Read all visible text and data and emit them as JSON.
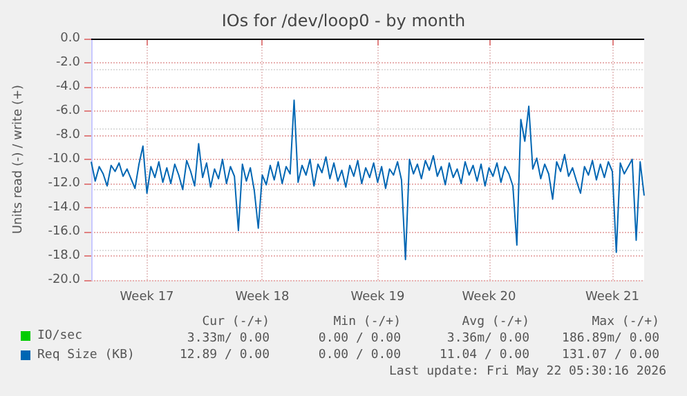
{
  "chart_data": {
    "type": "line",
    "title": "IOs for /dev/loop0 - by month",
    "ylabel": "Units read (-) / write (+)",
    "categories": [
      null,
      null,
      null,
      null,
      null,
      null,
      null,
      null,
      null,
      null,
      null,
      null,
      null,
      null,
      "Week 17",
      null,
      null,
      null,
      null,
      null,
      null,
      null,
      null,
      null,
      null,
      null,
      null,
      null,
      null,
      null,
      null,
      null,
      null,
      null,
      null,
      null,
      null,
      null,
      null,
      null,
      null,
      null,
      null,
      "Week 18",
      null,
      null,
      null,
      null,
      null,
      null,
      null,
      null,
      null,
      null,
      null,
      null,
      null,
      null,
      null,
      null,
      null,
      null,
      null,
      null,
      null,
      null,
      null,
      null,
      null,
      null,
      null,
      null,
      "Week 19",
      null,
      null,
      null,
      null,
      null,
      null,
      null,
      null,
      null,
      null,
      null,
      null,
      null,
      null,
      null,
      null,
      null,
      null,
      null,
      null,
      null,
      null,
      null,
      null,
      null,
      null,
      null,
      "Week 20",
      null,
      null,
      null,
      null,
      null,
      null,
      null,
      null,
      null,
      null,
      null,
      null,
      null,
      null,
      null,
      null,
      null,
      null,
      null,
      null,
      null,
      null,
      null,
      null,
      null,
      null,
      null,
      null,
      null,
      null,
      "Week 21",
      null,
      null,
      null,
      null,
      null,
      null,
      null,
      null
    ],
    "ylim": [
      -20,
      0
    ],
    "yticks": [
      {
        "value": -20,
        "label": "-20.0"
      },
      {
        "value": -18,
        "label": "-18.0"
      },
      {
        "value": -16,
        "label": "-16.0"
      },
      {
        "value": -14,
        "label": "-14.0"
      },
      {
        "value": -12,
        "label": "-12.0"
      },
      {
        "value": -10,
        "label": "-10.0"
      },
      {
        "value": -8,
        "label": "-8.0"
      },
      {
        "value": -6,
        "label": "-6.0"
      },
      {
        "value": -4,
        "label": "-4.0"
      },
      {
        "value": -2,
        "label": "-2.0"
      },
      {
        "value": 0,
        "label": "0.0"
      }
    ],
    "grid": true,
    "legend": "bottom left",
    "marker": "none",
    "line_style": "solid",
    "ref_lines": [
      {
        "axis": "y",
        "value": 0,
        "label": null,
        "color": "#000000"
      }
    ],
    "series": [
      {
        "name": "IO/sec",
        "color": "#00cc00",
        "values": [
          null,
          null,
          null,
          null,
          null,
          null,
          null,
          null,
          null,
          null,
          null,
          null,
          null,
          null,
          null,
          null,
          null,
          null,
          null,
          null,
          null,
          null,
          null,
          null,
          null,
          null,
          null,
          null,
          null,
          null,
          null,
          null,
          null,
          null,
          null,
          null,
          null,
          null,
          null,
          null,
          null,
          null,
          null,
          null,
          null,
          null,
          null,
          null,
          null,
          null,
          null,
          null,
          null,
          null,
          null,
          null,
          null,
          null,
          null,
          null,
          null,
          null,
          null,
          null,
          null,
          null,
          null,
          null,
          null,
          null,
          null,
          null,
          null,
          null,
          null,
          null,
          null,
          null,
          null,
          null,
          null,
          null,
          null,
          null,
          null,
          null,
          null,
          null,
          null,
          null,
          null,
          null,
          null,
          null,
          null,
          null,
          null,
          null,
          null,
          null,
          null,
          null,
          null,
          null,
          null,
          null,
          null,
          null,
          null,
          null,
          null,
          null,
          null,
          null,
          null,
          null,
          null,
          null,
          null,
          null,
          null,
          null,
          null,
          null,
          null,
          null,
          null,
          null,
          null,
          null,
          null,
          null,
          null,
          null,
          null,
          null,
          null,
          null,
          null,
          null
        ]
      },
      {
        "name": "Req Size (KB)",
        "color": "#0066b3",
        "values": [
          -10.2,
          -11.8,
          -10.6,
          -11.2,
          -12.2,
          -10.5,
          -11.0,
          -10.3,
          -11.4,
          -10.8,
          -11.6,
          -12.4,
          -10.4,
          -8.9,
          -12.8,
          -10.6,
          -11.5,
          -10.2,
          -11.9,
          -10.7,
          -12.0,
          -10.4,
          -11.3,
          -12.5,
          -10.1,
          -11.0,
          -12.2,
          -8.7,
          -11.5,
          -10.3,
          -12.3,
          -10.8,
          -11.6,
          -10.0,
          -12.0,
          -10.6,
          -11.4,
          -15.9,
          -10.4,
          -11.8,
          -10.7,
          -12.6,
          -15.7,
          -11.3,
          -12.1,
          -10.5,
          -11.7,
          -10.2,
          -12.0,
          -10.6,
          -11.2,
          -5.1,
          -11.9,
          -10.5,
          -11.3,
          -10.0,
          -12.2,
          -10.4,
          -11.1,
          -9.8,
          -11.6,
          -10.3,
          -11.8,
          -10.9,
          -12.3,
          -10.5,
          -11.4,
          -10.1,
          -12.0,
          -10.7,
          -11.5,
          -10.3,
          -11.9,
          -10.6,
          -12.4,
          -10.8,
          -11.3,
          -10.2,
          -11.7,
          -18.3,
          -10.0,
          -11.2,
          -10.4,
          -11.6,
          -10.1,
          -10.9,
          -9.7,
          -11.4,
          -10.6,
          -12.1,
          -10.3,
          -11.5,
          -10.8,
          -12.0,
          -10.2,
          -11.3,
          -10.5,
          -11.8,
          -10.4,
          -12.2,
          -10.7,
          -11.4,
          -10.3,
          -11.9,
          -10.6,
          -11.2,
          -12.2,
          -17.1,
          -6.7,
          -8.5,
          -5.6,
          -10.8,
          -9.9,
          -11.6,
          -10.4,
          -11.2,
          -13.3,
          -10.2,
          -11.0,
          -9.6,
          -11.4,
          -10.7,
          -11.8,
          -12.8,
          -10.6,
          -11.3,
          -10.1,
          -11.7,
          -10.4,
          -11.5,
          -10.2,
          -11.0,
          -17.7,
          -10.3,
          -11.2,
          -10.6,
          -10.0,
          -16.7,
          -10.2,
          -13.0
        ]
      }
    ],
    "annotations": [
      "Cur (-/+)",
      "Min (-/+)",
      "Avg (-/+)",
      "Max (-/+)",
      "3.33m/ 0.00",
      "0.00 / 0.00",
      "3.36m/ 0.00",
      "186.89m/ 0.00",
      "12.89 / 0.00",
      "0.00 / 0.00",
      "11.04 / 0.00",
      "131.07 / 0.00",
      "Last update: Fri May 22 05:30:16 2026"
    ]
  }
}
